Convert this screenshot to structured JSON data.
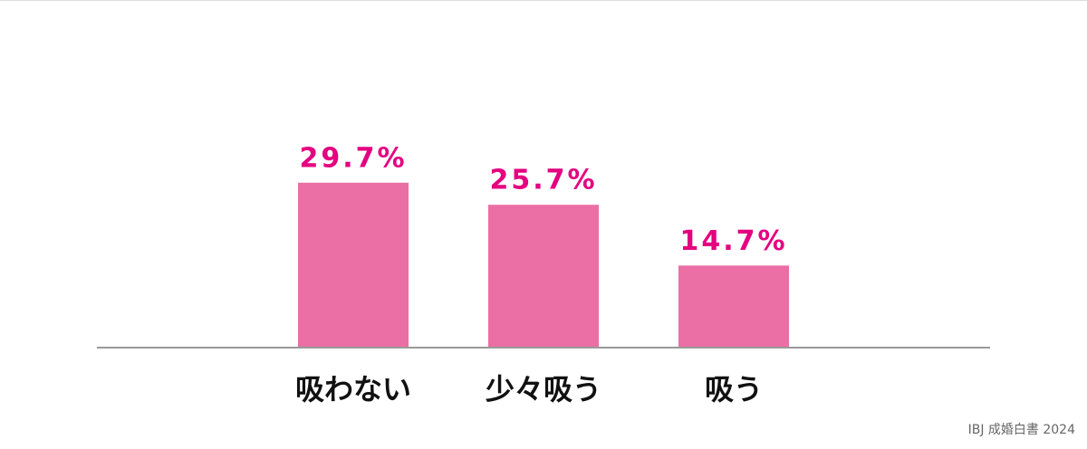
{
  "chart_data": {
    "type": "bar",
    "categories": [
      "吸わない",
      "少々吸う",
      "吸う"
    ],
    "values": [
      29.7,
      25.7,
      14.7
    ],
    "value_labels": [
      "29.7%",
      "25.7%",
      "14.7%"
    ],
    "color": "#eb6ea5",
    "label_color": "#e4007f",
    "source": "IBJ 成婚白書 2024"
  }
}
